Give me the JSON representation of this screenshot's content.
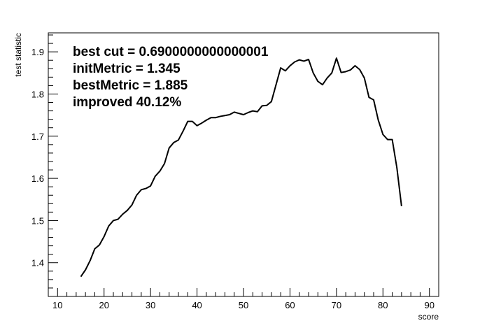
{
  "chart_data": {
    "type": "line",
    "title": "",
    "xlabel": "score",
    "ylabel": "test statistic",
    "xlim": [
      8,
      92
    ],
    "ylim": [
      1.32,
      1.945
    ],
    "x_ticks": [
      10,
      20,
      30,
      40,
      50,
      60,
      70,
      80,
      90
    ],
    "y_ticks": [
      1.4,
      1.5,
      1.6,
      1.7,
      1.8,
      1.9
    ],
    "grid": false,
    "legend": "none",
    "annotations": [
      "best cut = 0.6900000000000001",
      "initMetric = 1.345",
      "bestMetric = 1.885",
      "improved 40.12%"
    ],
    "series": [
      {
        "color": "#000000",
        "x": [
          15,
          16,
          17,
          18,
          19,
          20,
          21,
          22,
          23,
          24,
          25,
          26,
          27,
          28,
          29,
          30,
          31,
          32,
          33,
          34,
          35,
          36,
          37,
          38,
          39,
          40,
          41,
          42,
          43,
          44,
          45,
          46,
          47,
          48,
          49,
          50,
          51,
          52,
          53,
          54,
          55,
          56,
          57,
          58,
          59,
          60,
          61,
          62,
          63,
          64,
          65,
          66,
          67,
          68,
          69,
          70,
          71,
          72,
          73,
          74,
          75,
          76,
          77,
          78,
          79,
          80,
          81,
          82,
          83,
          84
        ],
        "y": [
          1.367,
          1.383,
          1.405,
          1.433,
          1.442,
          1.462,
          1.487,
          1.5,
          1.503,
          1.515,
          1.524,
          1.537,
          1.56,
          1.573,
          1.576,
          1.582,
          1.605,
          1.617,
          1.635,
          1.672,
          1.685,
          1.691,
          1.712,
          1.735,
          1.735,
          1.725,
          1.731,
          1.738,
          1.744,
          1.744,
          1.747,
          1.749,
          1.751,
          1.757,
          1.754,
          1.751,
          1.756,
          1.76,
          1.758,
          1.772,
          1.773,
          1.782,
          1.822,
          1.862,
          1.855,
          1.867,
          1.876,
          1.881,
          1.878,
          1.882,
          1.85,
          1.83,
          1.822,
          1.838,
          1.85,
          1.885,
          1.851,
          1.853,
          1.857,
          1.867,
          1.858,
          1.838,
          1.792,
          1.786,
          1.738,
          1.704,
          1.692,
          1.692,
          1.625,
          1.534
        ]
      }
    ]
  }
}
